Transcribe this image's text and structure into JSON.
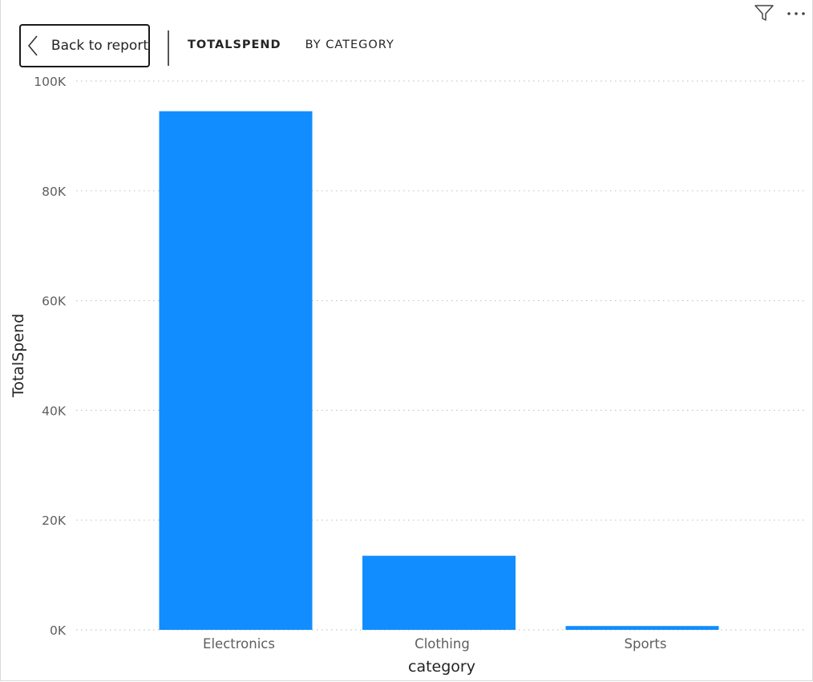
{
  "header": {
    "back_label": "Back to report",
    "title_measure": "TOTALSPEND",
    "title_by": "BY CATEGORY"
  },
  "toolbar": {
    "filter_icon": "filter-icon",
    "more_icon": "more-options-icon"
  },
  "colors": {
    "bar": "#118dff",
    "grid": "#c8c6c4"
  },
  "chart_data": {
    "type": "bar",
    "categories": [
      "Electronics",
      "Clothing",
      "Sports"
    ],
    "values": [
      94500,
      13500,
      700
    ],
    "title": "",
    "xlabel": "category",
    "ylabel": "TotalSpend",
    "ylim": [
      0,
      100000
    ],
    "y_ticks": [
      0,
      20000,
      40000,
      60000,
      80000,
      100000
    ],
    "y_tick_labels": [
      "0K",
      "20K",
      "40K",
      "60K",
      "80K",
      "100K"
    ],
    "grid": true,
    "legend": "none"
  }
}
